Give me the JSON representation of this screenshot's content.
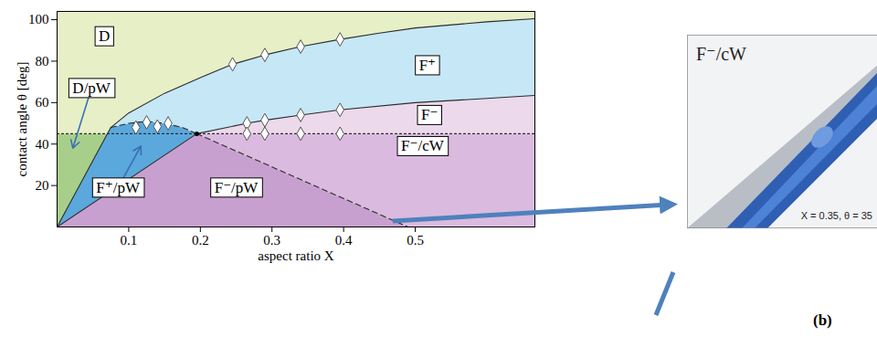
{
  "chart_data": {
    "type": "phase_diagram",
    "x_label": "aspect ratio X",
    "y_label": "contact angle θ [deg]",
    "xlim": [
      0,
      0.667
    ],
    "ylim": [
      0,
      104
    ],
    "xticks": [
      0.1,
      0.2,
      0.3,
      0.4,
      0.5
    ],
    "yticks": [
      20,
      40,
      60,
      80,
      100
    ],
    "regions": [
      {
        "name": "D",
        "color": "#e7efc7",
        "label_at": [
          0.066,
          92
        ],
        "polygon": [
          [
            0,
            45
          ],
          [
            0.0703,
            45
          ],
          [
            0.075,
            48
          ],
          [
            0.1,
            55
          ],
          [
            0.15,
            64.5
          ],
          [
            0.2,
            72
          ],
          [
            0.245,
            78.5
          ],
          [
            0.29,
            83
          ],
          [
            0.34,
            87
          ],
          [
            0.395,
            90.5
          ],
          [
            0.45,
            93.5
          ],
          [
            0.5,
            96
          ],
          [
            0.6,
            99
          ],
          [
            0.667,
            100.5
          ],
          [
            0.667,
            104
          ],
          [
            0,
            104
          ]
        ]
      },
      {
        "name": "D/pW",
        "color": "#a8cf8a",
        "label_at": [
          0.048,
          67
        ],
        "arrow_to": [
          0.022,
          38
        ],
        "polygon": [
          [
            0,
            0
          ],
          [
            0.0703,
            45
          ],
          [
            0,
            45
          ]
        ]
      },
      {
        "name": "F⁺/pW",
        "color": "#5ba8dc",
        "label_at": [
          0.085,
          19
        ],
        "arrow_to": [
          0.117,
          39
        ],
        "polygon": [
          [
            0,
            0
          ],
          [
            0.195,
            45
          ],
          [
            0.175,
            48
          ],
          [
            0.15,
            50
          ],
          [
            0.125,
            51
          ],
          [
            0.1,
            50
          ],
          [
            0.075,
            48
          ],
          [
            0.0703,
            45
          ]
        ]
      },
      {
        "name": "F⁺",
        "color": "#c6e7f6",
        "label_at": [
          0.517,
          78
        ],
        "polygon": [
          [
            0.075,
            48
          ],
          [
            0.1,
            50
          ],
          [
            0.125,
            51
          ],
          [
            0.15,
            50
          ],
          [
            0.175,
            48
          ],
          [
            0.195,
            45
          ],
          [
            0.265,
            50
          ],
          [
            0.29,
            51.5
          ],
          [
            0.34,
            54
          ],
          [
            0.395,
            56.5
          ],
          [
            0.5,
            60
          ],
          [
            0.6,
            62
          ],
          [
            0.667,
            63.5
          ],
          [
            0.667,
            100.5
          ],
          [
            0.6,
            99
          ],
          [
            0.5,
            96
          ],
          [
            0.45,
            93.5
          ],
          [
            0.395,
            90.5
          ],
          [
            0.34,
            87
          ],
          [
            0.29,
            83
          ],
          [
            0.245,
            78.5
          ],
          [
            0.2,
            72
          ],
          [
            0.15,
            64.5
          ],
          [
            0.1,
            55
          ]
        ]
      },
      {
        "name": "F⁻",
        "color": "#ecd9ec",
        "label_at": [
          0.52,
          54
        ],
        "polygon": [
          [
            0.195,
            45
          ],
          [
            0.667,
            45
          ],
          [
            0.667,
            63.5
          ],
          [
            0.6,
            62
          ],
          [
            0.5,
            60
          ],
          [
            0.395,
            56.5
          ],
          [
            0.34,
            54
          ],
          [
            0.29,
            51.5
          ],
          [
            0.265,
            50
          ]
        ]
      },
      {
        "name": "F⁻/pW",
        "color": "#c8a0cf",
        "label_at": [
          0.25,
          19
        ],
        "polygon": [
          [
            0,
            0
          ],
          [
            0.49,
            0
          ],
          [
            0.195,
            45
          ]
        ]
      },
      {
        "name": "F⁻/cW",
        "color": "#dbbadf",
        "label_at": [
          0.51,
          39
        ],
        "polygon": [
          [
            0.49,
            0
          ],
          [
            0.667,
            0
          ],
          [
            0.667,
            45
          ],
          [
            0.195,
            45
          ]
        ]
      }
    ],
    "boundaries": [
      {
        "line_style": "solid",
        "points": [
          [
            0,
            0
          ],
          [
            0.075,
            48
          ],
          [
            0.1,
            55
          ],
          [
            0.15,
            64.5
          ],
          [
            0.2,
            72
          ],
          [
            0.245,
            78.5
          ],
          [
            0.29,
            83
          ],
          [
            0.34,
            87
          ],
          [
            0.395,
            90.5
          ],
          [
            0.45,
            93.5
          ],
          [
            0.5,
            96
          ],
          [
            0.6,
            99
          ],
          [
            0.667,
            100.5
          ]
        ]
      },
      {
        "line_style": "solid",
        "points": [
          [
            0,
            0
          ],
          [
            0.195,
            45
          ]
        ]
      },
      {
        "line_style": "solid",
        "points": [
          [
            0.195,
            45
          ],
          [
            0.265,
            50
          ],
          [
            0.29,
            51.5
          ],
          [
            0.34,
            54
          ],
          [
            0.395,
            56.5
          ],
          [
            0.5,
            60
          ],
          [
            0.6,
            62
          ],
          [
            0.667,
            63.5
          ]
        ]
      },
      {
        "line_style": "dashed",
        "points": [
          [
            0.075,
            48
          ],
          [
            0.1,
            50
          ],
          [
            0.125,
            51
          ],
          [
            0.15,
            50
          ],
          [
            0.175,
            48
          ],
          [
            0.195,
            45
          ]
        ]
      },
      {
        "line_style": "dashed",
        "points": [
          [
            0.195,
            45
          ],
          [
            0.49,
            0
          ]
        ]
      },
      {
        "line_style": "dotted",
        "points": [
          [
            0,
            45
          ],
          [
            0.667,
            45
          ]
        ]
      }
    ],
    "markers": {
      "marker": "diamond",
      "points": [
        [
          0.245,
          78.5
        ],
        [
          0.29,
          83
        ],
        [
          0.34,
          87
        ],
        [
          0.395,
          90.5
        ],
        [
          0.265,
          50
        ],
        [
          0.29,
          51.5
        ],
        [
          0.34,
          54
        ],
        [
          0.395,
          56.5
        ],
        [
          0.265,
          45
        ],
        [
          0.29,
          45
        ],
        [
          0.34,
          45
        ],
        [
          0.395,
          45
        ],
        [
          0.11,
          48
        ],
        [
          0.125,
          50.5
        ],
        [
          0.14,
          48.5
        ],
        [
          0.155,
          50
        ]
      ]
    },
    "junction": [
      0.195,
      45
    ]
  },
  "inset": {
    "label": "F⁻/cW",
    "caption": "X = 0.35, θ = 35"
  },
  "panel_label": "(b)"
}
